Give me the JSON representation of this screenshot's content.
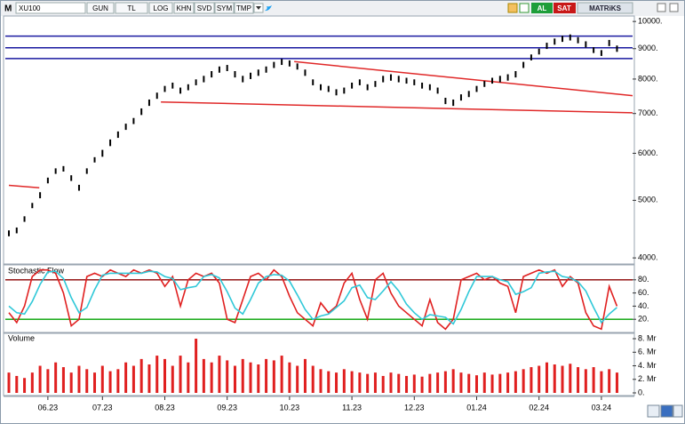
{
  "toolbar": {
    "symbol_prefix": "M",
    "symbol": "XU100",
    "buttons": [
      "GUN",
      "TL",
      "LOG",
      "KHN",
      "SVD",
      "SYM",
      "TMP"
    ],
    "buy": "AL",
    "sell": "SAT",
    "brand": "MATRiKS"
  },
  "chart_data": [
    {
      "type": "hilo",
      "color": "#000000",
      "log_scale": true,
      "xlim": [
        0,
        80
      ],
      "ylim": [
        3920,
        10250
      ],
      "yticks": [
        {
          "value": 4000,
          "label": "4000."
        },
        {
          "value": 5000,
          "label": "5000."
        },
        {
          "value": 6000,
          "label": "6000."
        },
        {
          "value": 7000,
          "label": "7000."
        },
        {
          "value": 8000,
          "label": "8000."
        },
        {
          "value": 9000,
          "label": "9000."
        },
        {
          "value": 10000,
          "label": "10000."
        }
      ],
      "high": [
        4450,
        4500,
        4700,
        4950,
        5160,
        5460,
        5660,
        5710,
        5510,
        5310,
        5660,
        5910,
        6080,
        6330,
        6530,
        6730,
        6880,
        7140,
        7390,
        7590,
        7790,
        7890,
        7740,
        7840,
        7990,
        8100,
        8250,
        8400,
        8450,
        8250,
        8100,
        8200,
        8300,
        8400,
        8550,
        8650,
        8600,
        8500,
        8300,
        7990,
        7840,
        7790,
        7690,
        7740,
        7890,
        7990,
        7840,
        7940,
        8100,
        8150,
        8100,
        8040,
        7990,
        7890,
        7840,
        7740,
        7440,
        7390,
        7540,
        7640,
        7790,
        7940,
        8040,
        8100,
        8150,
        8250,
        8550,
        8800,
        9000,
        9210,
        9360,
        9460,
        9510,
        9410,
        9260,
        9050,
        8950,
        9310,
        9110
      ],
      "low": [
        4350,
        4400,
        4600,
        4850,
        5040,
        5340,
        5540,
        5590,
        5390,
        5190,
        5540,
        5790,
        5920,
        6170,
        6370,
        6570,
        6720,
        6960,
        7210,
        7410,
        7610,
        7710,
        7560,
        7660,
        7810,
        7900,
        8050,
        8200,
        8250,
        8050,
        7900,
        8000,
        8100,
        8200,
        8350,
        8450,
        8400,
        8300,
        8100,
        7810,
        7660,
        7610,
        7510,
        7560,
        7710,
        7810,
        7660,
        7760,
        7900,
        7950,
        7900,
        7860,
        7810,
        7710,
        7660,
        7560,
        7260,
        7210,
        7360,
        7460,
        7610,
        7760,
        7860,
        7900,
        7950,
        8050,
        8350,
        8600,
        8800,
        8990,
        9140,
        9240,
        9290,
        9190,
        9040,
        8850,
        8750,
        9090,
        8890
      ],
      "hlines": [
        9450,
        9030,
        8660
      ],
      "hline_color": "#1a1aa0",
      "trendlines": [
        {
          "x": [
            36.6,
            80
          ],
          "y": [
            8560,
            7500
          ]
        },
        {
          "x": [
            19.5,
            80
          ],
          "y": [
            7320,
            7020
          ]
        },
        {
          "x": [
            0,
            3.9
          ],
          "y": [
            5300,
            5250
          ]
        }
      ],
      "trend_color": "#e02828"
    },
    {
      "type": "line",
      "title": "Stochastic Flow",
      "xlim": [
        0,
        80
      ],
      "ylim": [
        0,
        100
      ],
      "yticks": [
        {
          "value": 20,
          "label": "20."
        },
        {
          "value": 40,
          "label": "40."
        },
        {
          "value": 60,
          "label": "60."
        },
        {
          "value": 80,
          "label": "80."
        }
      ],
      "levels": [
        {
          "value": 80,
          "color": "#8b0000"
        },
        {
          "value": 20,
          "color": "#00a000"
        }
      ],
      "series": [
        {
          "color": "#e02020",
          "values": [
            30,
            15,
            40,
            85,
            95,
            95,
            90,
            60,
            10,
            20,
            85,
            90,
            85,
            95,
            90,
            85,
            95,
            90,
            95,
            90,
            70,
            85,
            40,
            80,
            90,
            85,
            90,
            75,
            20,
            15,
            50,
            85,
            90,
            80,
            95,
            85,
            55,
            30,
            20,
            10,
            45,
            30,
            40,
            75,
            90,
            50,
            20,
            80,
            90,
            60,
            40,
            30,
            20,
            10,
            50,
            15,
            5,
            20,
            80,
            85,
            90,
            80,
            85,
            75,
            70,
            30,
            85,
            90,
            95,
            90,
            95,
            70,
            85,
            75,
            30,
            10,
            5,
            70,
            40
          ]
        },
        {
          "color": "#30c8d8",
          "values": [
            40,
            30,
            28,
            47,
            73,
            92,
            93,
            82,
            53,
            30,
            38,
            65,
            87,
            90,
            90,
            90,
            90,
            90,
            93,
            92,
            85,
            82,
            65,
            68,
            70,
            85,
            88,
            83,
            62,
            37,
            28,
            50,
            75,
            85,
            88,
            87,
            78,
            57,
            35,
            20,
            25,
            28,
            38,
            48,
            68,
            72,
            53,
            50,
            63,
            77,
            63,
            43,
            30,
            20,
            27,
            25,
            23,
            13,
            35,
            62,
            85,
            85,
            85,
            80,
            77,
            58,
            62,
            68,
            90,
            92,
            93,
            85,
            83,
            77,
            63,
            38,
            15,
            28,
            38
          ]
        }
      ]
    },
    {
      "type": "bar",
      "title": "Volume",
      "color": "#e02020",
      "xlim": [
        0,
        80
      ],
      "ylim": [
        0,
        8.66
      ],
      "yticks": [
        {
          "value": 0,
          "label": "0."
        },
        {
          "value": 2,
          "label": "2. Mr"
        },
        {
          "value": 4,
          "label": "4. Mr"
        },
        {
          "value": 6,
          "label": "6. Mr"
        },
        {
          "value": 8,
          "label": "8. Mr"
        }
      ],
      "xticks": [
        {
          "value": 5,
          "label": "06.23"
        },
        {
          "value": 12,
          "label": "07.23"
        },
        {
          "value": 20,
          "label": "08.23"
        },
        {
          "value": 28,
          "label": "09.23"
        },
        {
          "value": 36,
          "label": "10.23"
        },
        {
          "value": 44,
          "label": "11.23"
        },
        {
          "value": 52,
          "label": "12.23"
        },
        {
          "value": 60,
          "label": "01.24"
        },
        {
          "value": 68,
          "label": "02.24"
        },
        {
          "value": 76,
          "label": "03.24"
        }
      ],
      "values": [
        3,
        2.5,
        2.2,
        3,
        4,
        3.5,
        4.5,
        3.8,
        3,
        4,
        3.5,
        3,
        4,
        3.2,
        3.5,
        4.5,
        4,
        5,
        4.2,
        5.5,
        5,
        4,
        5.5,
        4.5,
        8,
        5,
        4.5,
        5.5,
        4.8,
        4,
        5,
        4.5,
        4.2,
        5,
        4.8,
        5.5,
        4.5,
        4,
        5,
        4,
        3.5,
        3.2,
        3,
        3.5,
        3.2,
        3,
        2.8,
        3,
        2.5,
        3,
        2.8,
        2.5,
        2.7,
        2.4,
        2.8,
        3,
        3.2,
        3.5,
        3,
        2.8,
        2.6,
        3,
        2.7,
        2.8,
        3,
        3.2,
        3.5,
        3.8,
        4,
        4.5,
        4.2,
        4,
        4.3,
        3.8,
        3.5,
        3.8,
        3.2,
        3.5,
        3
      ]
    }
  ]
}
